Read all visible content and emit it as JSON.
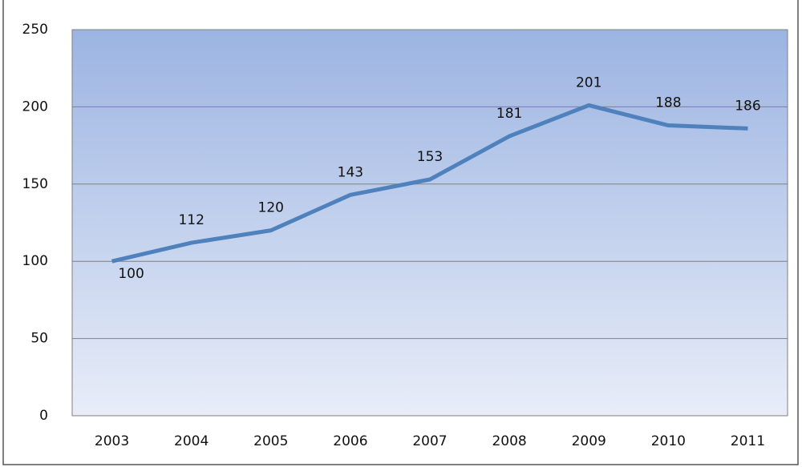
{
  "chart_data": {
    "type": "line",
    "categories": [
      "2003",
      "2004",
      "2005",
      "2006",
      "2007",
      "2008",
      "2009",
      "2010",
      "2011"
    ],
    "values": [
      100,
      112,
      120,
      143,
      153,
      181,
      201,
      188,
      186
    ],
    "color": "#4f81bd",
    "ylim": [
      0,
      250
    ],
    "yticks": [
      0,
      50,
      100,
      150,
      200,
      250
    ],
    "grid": true
  }
}
